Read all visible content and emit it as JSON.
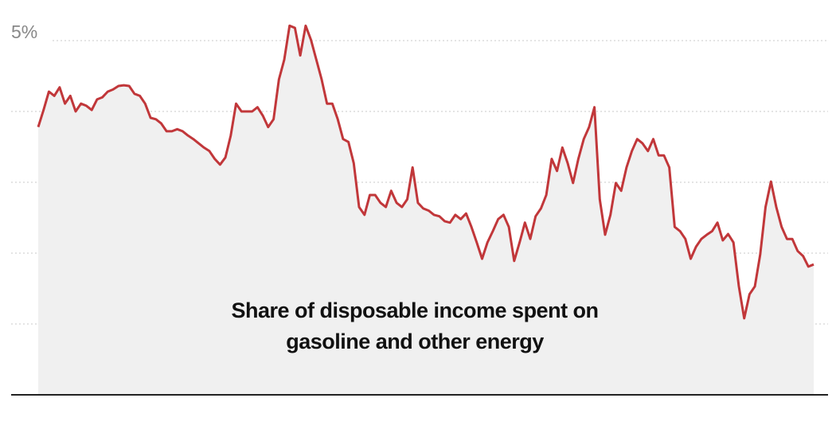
{
  "chart_data": {
    "type": "area-line",
    "annotation": [
      "Share of disposable income spent on",
      "gasoline and other energy"
    ],
    "color": "#c1373a",
    "area_color": "#f0f0f0",
    "ylim": [
      0,
      5.5
    ],
    "yticks": [
      {
        "value": 5,
        "label": "5%"
      }
    ],
    "grid_values": [
      1,
      2,
      3,
      4
    ],
    "grid": true,
    "values": [
      3.78,
      4.02,
      4.28,
      4.22,
      4.34,
      4.11,
      4.22,
      4.0,
      4.11,
      4.08,
      4.02,
      4.17,
      4.2,
      4.28,
      4.31,
      4.36,
      4.37,
      4.36,
      4.25,
      4.22,
      4.11,
      3.91,
      3.89,
      3.83,
      3.72,
      3.72,
      3.75,
      3.72,
      3.66,
      3.61,
      3.55,
      3.49,
      3.44,
      3.33,
      3.25,
      3.35,
      3.66,
      4.11,
      4.0,
      4.0,
      4.0,
      4.06,
      3.94,
      3.78,
      3.89,
      4.45,
      4.73,
      5.21,
      5.18,
      4.79,
      5.21,
      5.01,
      4.73,
      4.45,
      4.11,
      4.11,
      3.89,
      3.61,
      3.57,
      3.27,
      2.65,
      2.54,
      2.82,
      2.82,
      2.71,
      2.65,
      2.88,
      2.71,
      2.65,
      2.76,
      3.21,
      2.71,
      2.63,
      2.6,
      2.54,
      2.52,
      2.45,
      2.43,
      2.54,
      2.48,
      2.56,
      2.37,
      2.15,
      1.92,
      2.15,
      2.31,
      2.48,
      2.54,
      2.37,
      1.89,
      2.15,
      2.43,
      2.2,
      2.52,
      2.63,
      2.82,
      3.33,
      3.16,
      3.49,
      3.27,
      2.99,
      3.33,
      3.61,
      3.78,
      4.06,
      2.76,
      2.26,
      2.54,
      2.99,
      2.88,
      3.21,
      3.44,
      3.61,
      3.55,
      3.44,
      3.61,
      3.38,
      3.38,
      3.21,
      2.37,
      2.31,
      2.2,
      1.92,
      2.09,
      2.2,
      2.26,
      2.31,
      2.43,
      2.18,
      2.27,
      2.15,
      1.53,
      1.08,
      1.42,
      1.53,
      1.98,
      2.65,
      3.01,
      2.65,
      2.37,
      2.2,
      2.2,
      2.03,
      1.96,
      1.81,
      1.84
    ]
  }
}
